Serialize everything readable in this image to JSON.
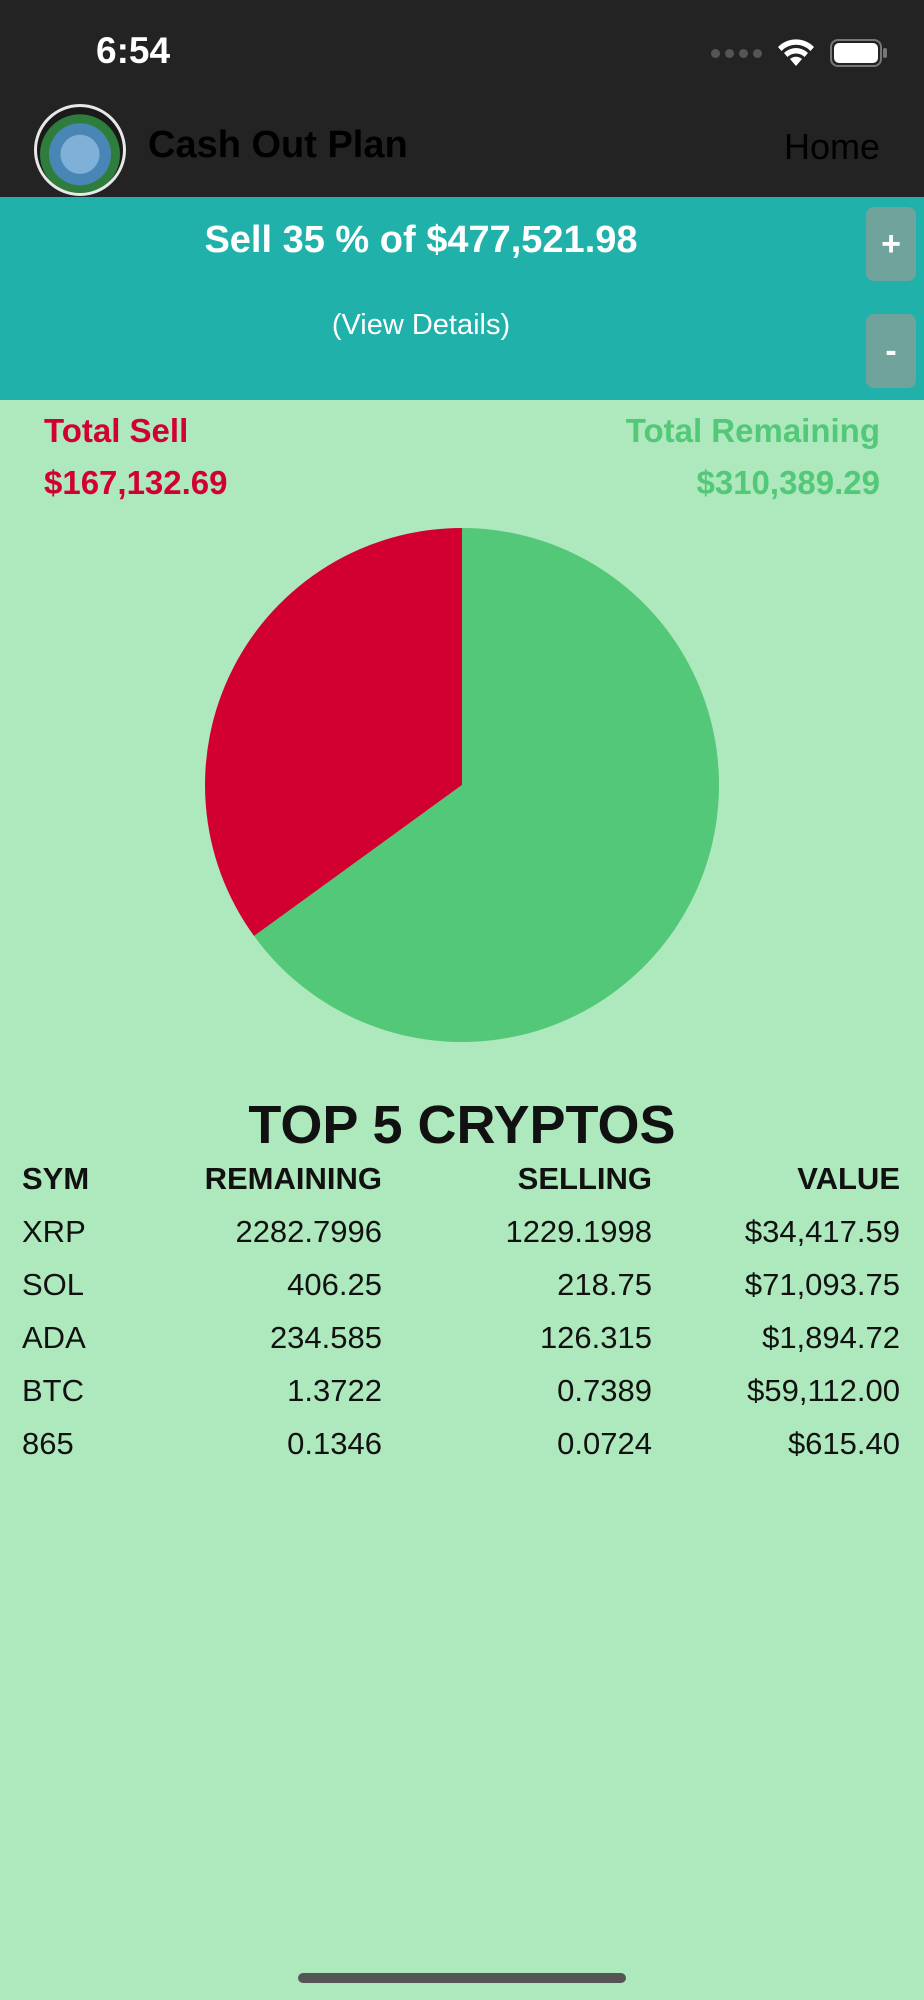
{
  "status_bar": {
    "time": "6:54"
  },
  "nav": {
    "title": "Cash Out Plan",
    "home_label": "Home"
  },
  "banner": {
    "headline": "Sell 35 % of $477,521.98",
    "details_link": "(View Details)",
    "increment_label": "+",
    "decrement_label": "-"
  },
  "totals": {
    "sell_label": "Total Sell",
    "sell_value": "$167,132.69",
    "remaining_label": "Total Remaining",
    "remaining_value": "$310,389.29"
  },
  "colors": {
    "sell": "#d20030",
    "remaining": "#52c878",
    "banner": "#20b2aa",
    "background": "#aee8bd"
  },
  "chart_data": {
    "type": "pie",
    "title": "",
    "slices": [
      {
        "label": "Total Sell",
        "value": 167132.69,
        "color": "#d20030"
      },
      {
        "label": "Total Remaining",
        "value": 310389.29,
        "color": "#52c878"
      }
    ]
  },
  "top_cryptos": {
    "title": "TOP 5 CRYPTOS",
    "headers": {
      "sym": "SYM",
      "remaining": "REMAINING",
      "selling": "SELLING",
      "value": "VALUE"
    },
    "rows": [
      {
        "sym": "XRP",
        "remaining": "2282.7996",
        "selling": "1229.1998",
        "value": "$34,417.59"
      },
      {
        "sym": "SOL",
        "remaining": "406.25",
        "selling": "218.75",
        "value": "$71,093.75"
      },
      {
        "sym": "ADA",
        "remaining": "234.585",
        "selling": "126.315",
        "value": "$1,894.72"
      },
      {
        "sym": "BTC",
        "remaining": "1.3722",
        "selling": "0.7389",
        "value": "$59,112.00"
      },
      {
        "sym": "865",
        "remaining": "0.1346",
        "selling": "0.0724",
        "value": "$615.40"
      }
    ]
  }
}
